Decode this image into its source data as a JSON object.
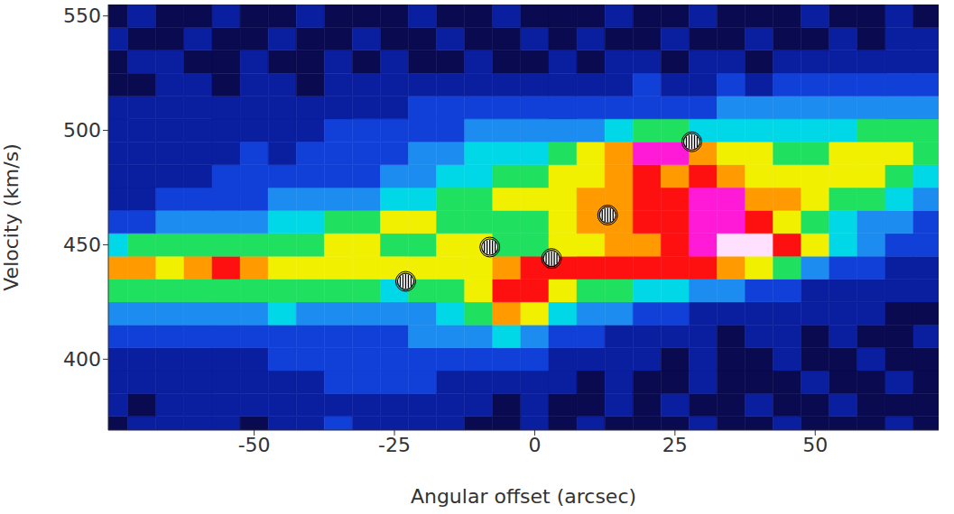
{
  "chart_data": {
    "type": "heatmap",
    "x_label": "Angular offset (arcsec)",
    "y_label": "Velocity (km/s)",
    "xlim": [
      -76,
      72
    ],
    "ylim": [
      369,
      555
    ],
    "xticks": [
      -50,
      -25,
      0,
      25,
      50
    ],
    "yticks": [
      400,
      450,
      500,
      550
    ],
    "grid": false,
    "zlim": [
      0,
      10
    ],
    "x_bins": [
      -77.5,
      -72.5,
      -67.5,
      -62.5,
      -57.5,
      -52.5,
      -47.5,
      -42.5,
      -37.5,
      -32.5,
      -27.5,
      -22.5,
      -17.5,
      -12.5,
      -7.5,
      -2.5,
      2.5,
      7.5,
      12.5,
      17.5,
      22.5,
      27.5,
      32.5,
      37.5,
      42.5,
      47.5,
      52.5,
      57.5,
      62.5,
      67.5,
      72.5
    ],
    "y_bins": [
      365,
      375,
      385,
      395,
      405,
      415,
      425,
      435,
      445,
      455,
      465,
      475,
      485,
      495,
      505,
      515,
      525,
      535,
      545,
      555
    ],
    "cells": [
      [
        0,
        1,
        1,
        1,
        1,
        0,
        1,
        1,
        2,
        1,
        1,
        1,
        1,
        0,
        0,
        1,
        0,
        1,
        0,
        0,
        0,
        1,
        0,
        0,
        1,
        0,
        0,
        0,
        1,
        0
      ],
      [
        1,
        0,
        1,
        1,
        1,
        1,
        1,
        1,
        1,
        1,
        1,
        1,
        1,
        1,
        0,
        1,
        0,
        0,
        1,
        0,
        1,
        0,
        0,
        1,
        0,
        0,
        1,
        0,
        0,
        0
      ],
      [
        1,
        1,
        1,
        1,
        1,
        1,
        1,
        1,
        2,
        2,
        2,
        2,
        1,
        1,
        1,
        1,
        1,
        0,
        1,
        0,
        0,
        1,
        0,
        0,
        0,
        1,
        0,
        0,
        1,
        0
      ],
      [
        1,
        1,
        1,
        1,
        1,
        1,
        2,
        2,
        2,
        2,
        2,
        2,
        2,
        2,
        2,
        2,
        1,
        1,
        1,
        1,
        0,
        1,
        0,
        0,
        1,
        0,
        0,
        1,
        0,
        0
      ],
      [
        2,
        2,
        2,
        2,
        2,
        2,
        2,
        2,
        2,
        2,
        2,
        3,
        3,
        3,
        4,
        3,
        2,
        2,
        1,
        1,
        1,
        1,
        0,
        1,
        1,
        0,
        1,
        0,
        0,
        1
      ],
      [
        3,
        3,
        3,
        3,
        3,
        3,
        4,
        3,
        3,
        3,
        3,
        3,
        4,
        5,
        7,
        6,
        4,
        3,
        3,
        2,
        2,
        1,
        1,
        1,
        1,
        1,
        1,
        1,
        0,
        0
      ],
      [
        5,
        5,
        5,
        5,
        5,
        5,
        5,
        5,
        5,
        5,
        4,
        5,
        5,
        6,
        8,
        8,
        6,
        5,
        5,
        4,
        4,
        3,
        3,
        2,
        2,
        1,
        1,
        1,
        1,
        1
      ],
      [
        7,
        7,
        6,
        7,
        8,
        7,
        6,
        6,
        6,
        6,
        6,
        6,
        6,
        6,
        7,
        8,
        8,
        8,
        8,
        8,
        8,
        8,
        7,
        6,
        5,
        3,
        2,
        2,
        1,
        1
      ],
      [
        4,
        5,
        5,
        5,
        5,
        5,
        5,
        5,
        6,
        6,
        5,
        5,
        6,
        6,
        5,
        5,
        6,
        6,
        7,
        7,
        8,
        9,
        10,
        10,
        8,
        6,
        4,
        3,
        2,
        2
      ],
      [
        2,
        2,
        3,
        3,
        3,
        3,
        4,
        4,
        5,
        5,
        6,
        6,
        5,
        5,
        5,
        5,
        6,
        7,
        7,
        8,
        8,
        9,
        9,
        8,
        6,
        5,
        4,
        3,
        3,
        2
      ],
      [
        1,
        1,
        2,
        2,
        2,
        2,
        3,
        3,
        3,
        3,
        4,
        4,
        5,
        5,
        6,
        6,
        6,
        7,
        7,
        8,
        8,
        9,
        9,
        7,
        7,
        6,
        5,
        5,
        4,
        3
      ],
      [
        1,
        1,
        1,
        1,
        2,
        2,
        2,
        2,
        2,
        2,
        3,
        3,
        4,
        4,
        5,
        5,
        6,
        6,
        7,
        8,
        7,
        8,
        7,
        6,
        6,
        6,
        6,
        6,
        5,
        4
      ],
      [
        1,
        1,
        1,
        1,
        1,
        2,
        1,
        2,
        2,
        2,
        2,
        3,
        3,
        4,
        4,
        4,
        5,
        6,
        7,
        9,
        9,
        7,
        6,
        6,
        5,
        5,
        6,
        6,
        6,
        5
      ],
      [
        1,
        1,
        1,
        1,
        1,
        1,
        1,
        1,
        2,
        2,
        2,
        2,
        2,
        3,
        3,
        3,
        3,
        3,
        4,
        5,
        5,
        4,
        4,
        4,
        4,
        4,
        4,
        5,
        5,
        5
      ],
      [
        1,
        1,
        1,
        1,
        1,
        1,
        1,
        1,
        1,
        1,
        1,
        2,
        2,
        2,
        2,
        2,
        2,
        2,
        2,
        2,
        2,
        2,
        3,
        3,
        3,
        3,
        3,
        3,
        3,
        3
      ],
      [
        0,
        0,
        1,
        1,
        0,
        1,
        1,
        0,
        1,
        1,
        1,
        1,
        1,
        1,
        1,
        1,
        1,
        1,
        1,
        2,
        1,
        1,
        2,
        1,
        2,
        2,
        2,
        2,
        2,
        2
      ],
      [
        0,
        1,
        1,
        0,
        0,
        1,
        0,
        0,
        1,
        0,
        1,
        0,
        0,
        1,
        0,
        0,
        1,
        0,
        1,
        1,
        0,
        1,
        1,
        0,
        1,
        1,
        1,
        1,
        1,
        1
      ],
      [
        1,
        0,
        0,
        1,
        0,
        0,
        1,
        0,
        0,
        1,
        0,
        0,
        1,
        0,
        0,
        1,
        0,
        1,
        0,
        0,
        1,
        0,
        0,
        1,
        0,
        0,
        1,
        0,
        1,
        1
      ],
      [
        0,
        1,
        0,
        0,
        1,
        0,
        0,
        1,
        0,
        0,
        0,
        1,
        0,
        0,
        1,
        0,
        0,
        0,
        1,
        0,
        0,
        1,
        0,
        0,
        0,
        1,
        0,
        0,
        1,
        0
      ]
    ],
    "markers": {
      "marker": "circle",
      "x": [
        -23,
        -8,
        3,
        13,
        28
      ],
      "y": [
        434,
        449,
        444,
        463,
        495
      ]
    }
  }
}
